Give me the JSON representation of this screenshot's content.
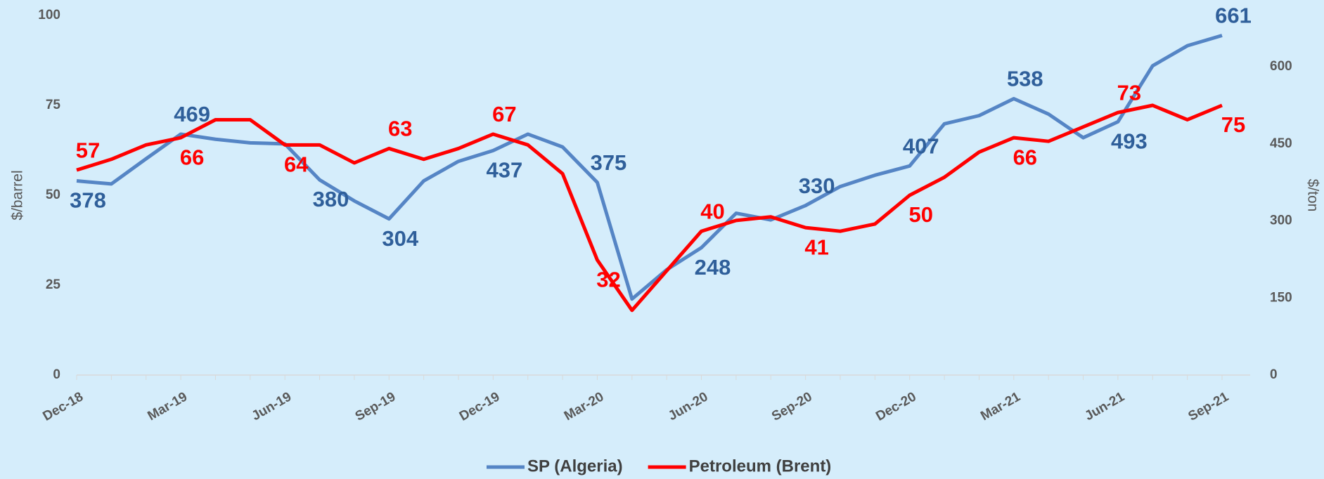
{
  "chart_data": {
    "type": "line",
    "y_label": "$/barrel",
    "y2_label": "$/ton",
    "categories": [
      "Dec-18",
      null,
      null,
      "Mar-19",
      null,
      null,
      "Jun-19",
      null,
      null,
      "Sep-19",
      null,
      null,
      "Dec-19",
      null,
      null,
      "Mar-20",
      null,
      null,
      "Jun-20",
      null,
      null,
      "Sep-20",
      null,
      null,
      "Dec-20",
      null,
      null,
      "Mar-21",
      null,
      null,
      "Jun-21",
      null,
      null,
      "Sep-21"
    ],
    "ylim": [
      0,
      100
    ],
    "yticks": [
      0,
      25,
      50,
      75,
      100
    ],
    "y2lim": [
      0,
      700
    ],
    "y2ticks": [
      0,
      150,
      300,
      450,
      600
    ],
    "series": [
      {
        "name": "SP (Algeria)",
        "color": "#5585c5",
        "label_color": "#2f5f9a",
        "axis": "y2",
        "values": [
          378,
          372,
          421,
          469,
          459,
          452,
          450,
          380,
          339,
          304,
          378,
          416,
          437,
          469,
          444,
          375,
          148,
          205,
          248,
          315,
          302,
          330,
          367,
          389,
          407,
          489,
          505,
          538,
          508,
          462,
          493,
          602,
          641,
          661
        ],
        "value_labels": [
          "378",
          null,
          null,
          "469",
          null,
          null,
          null,
          "380",
          null,
          "304",
          null,
          null,
          "437",
          null,
          null,
          "375",
          null,
          null,
          "248",
          null,
          null,
          "330",
          null,
          null,
          "407",
          null,
          null,
          "538",
          null,
          null,
          "493",
          null,
          null,
          "661"
        ]
      },
      {
        "name": "Petroleum (Brent)",
        "color": "#ff0000",
        "label_color": "#ff0000",
        "values": [
          57,
          60,
          64,
          66,
          71,
          71,
          64,
          64,
          59,
          63,
          60,
          63,
          67,
          64,
          56,
          32,
          18,
          29,
          40,
          43,
          44,
          41,
          40,
          42,
          50,
          55,
          62,
          66,
          65,
          69,
          73,
          75,
          71,
          75
        ],
        "value_labels": [
          "57",
          null,
          null,
          "66",
          null,
          null,
          "64",
          null,
          null,
          "63",
          null,
          null,
          "67",
          null,
          null,
          "32",
          null,
          null,
          "40",
          null,
          null,
          "41",
          null,
          null,
          "50",
          null,
          null,
          "66",
          null,
          null,
          "73",
          null,
          null,
          "75"
        ]
      }
    ]
  }
}
